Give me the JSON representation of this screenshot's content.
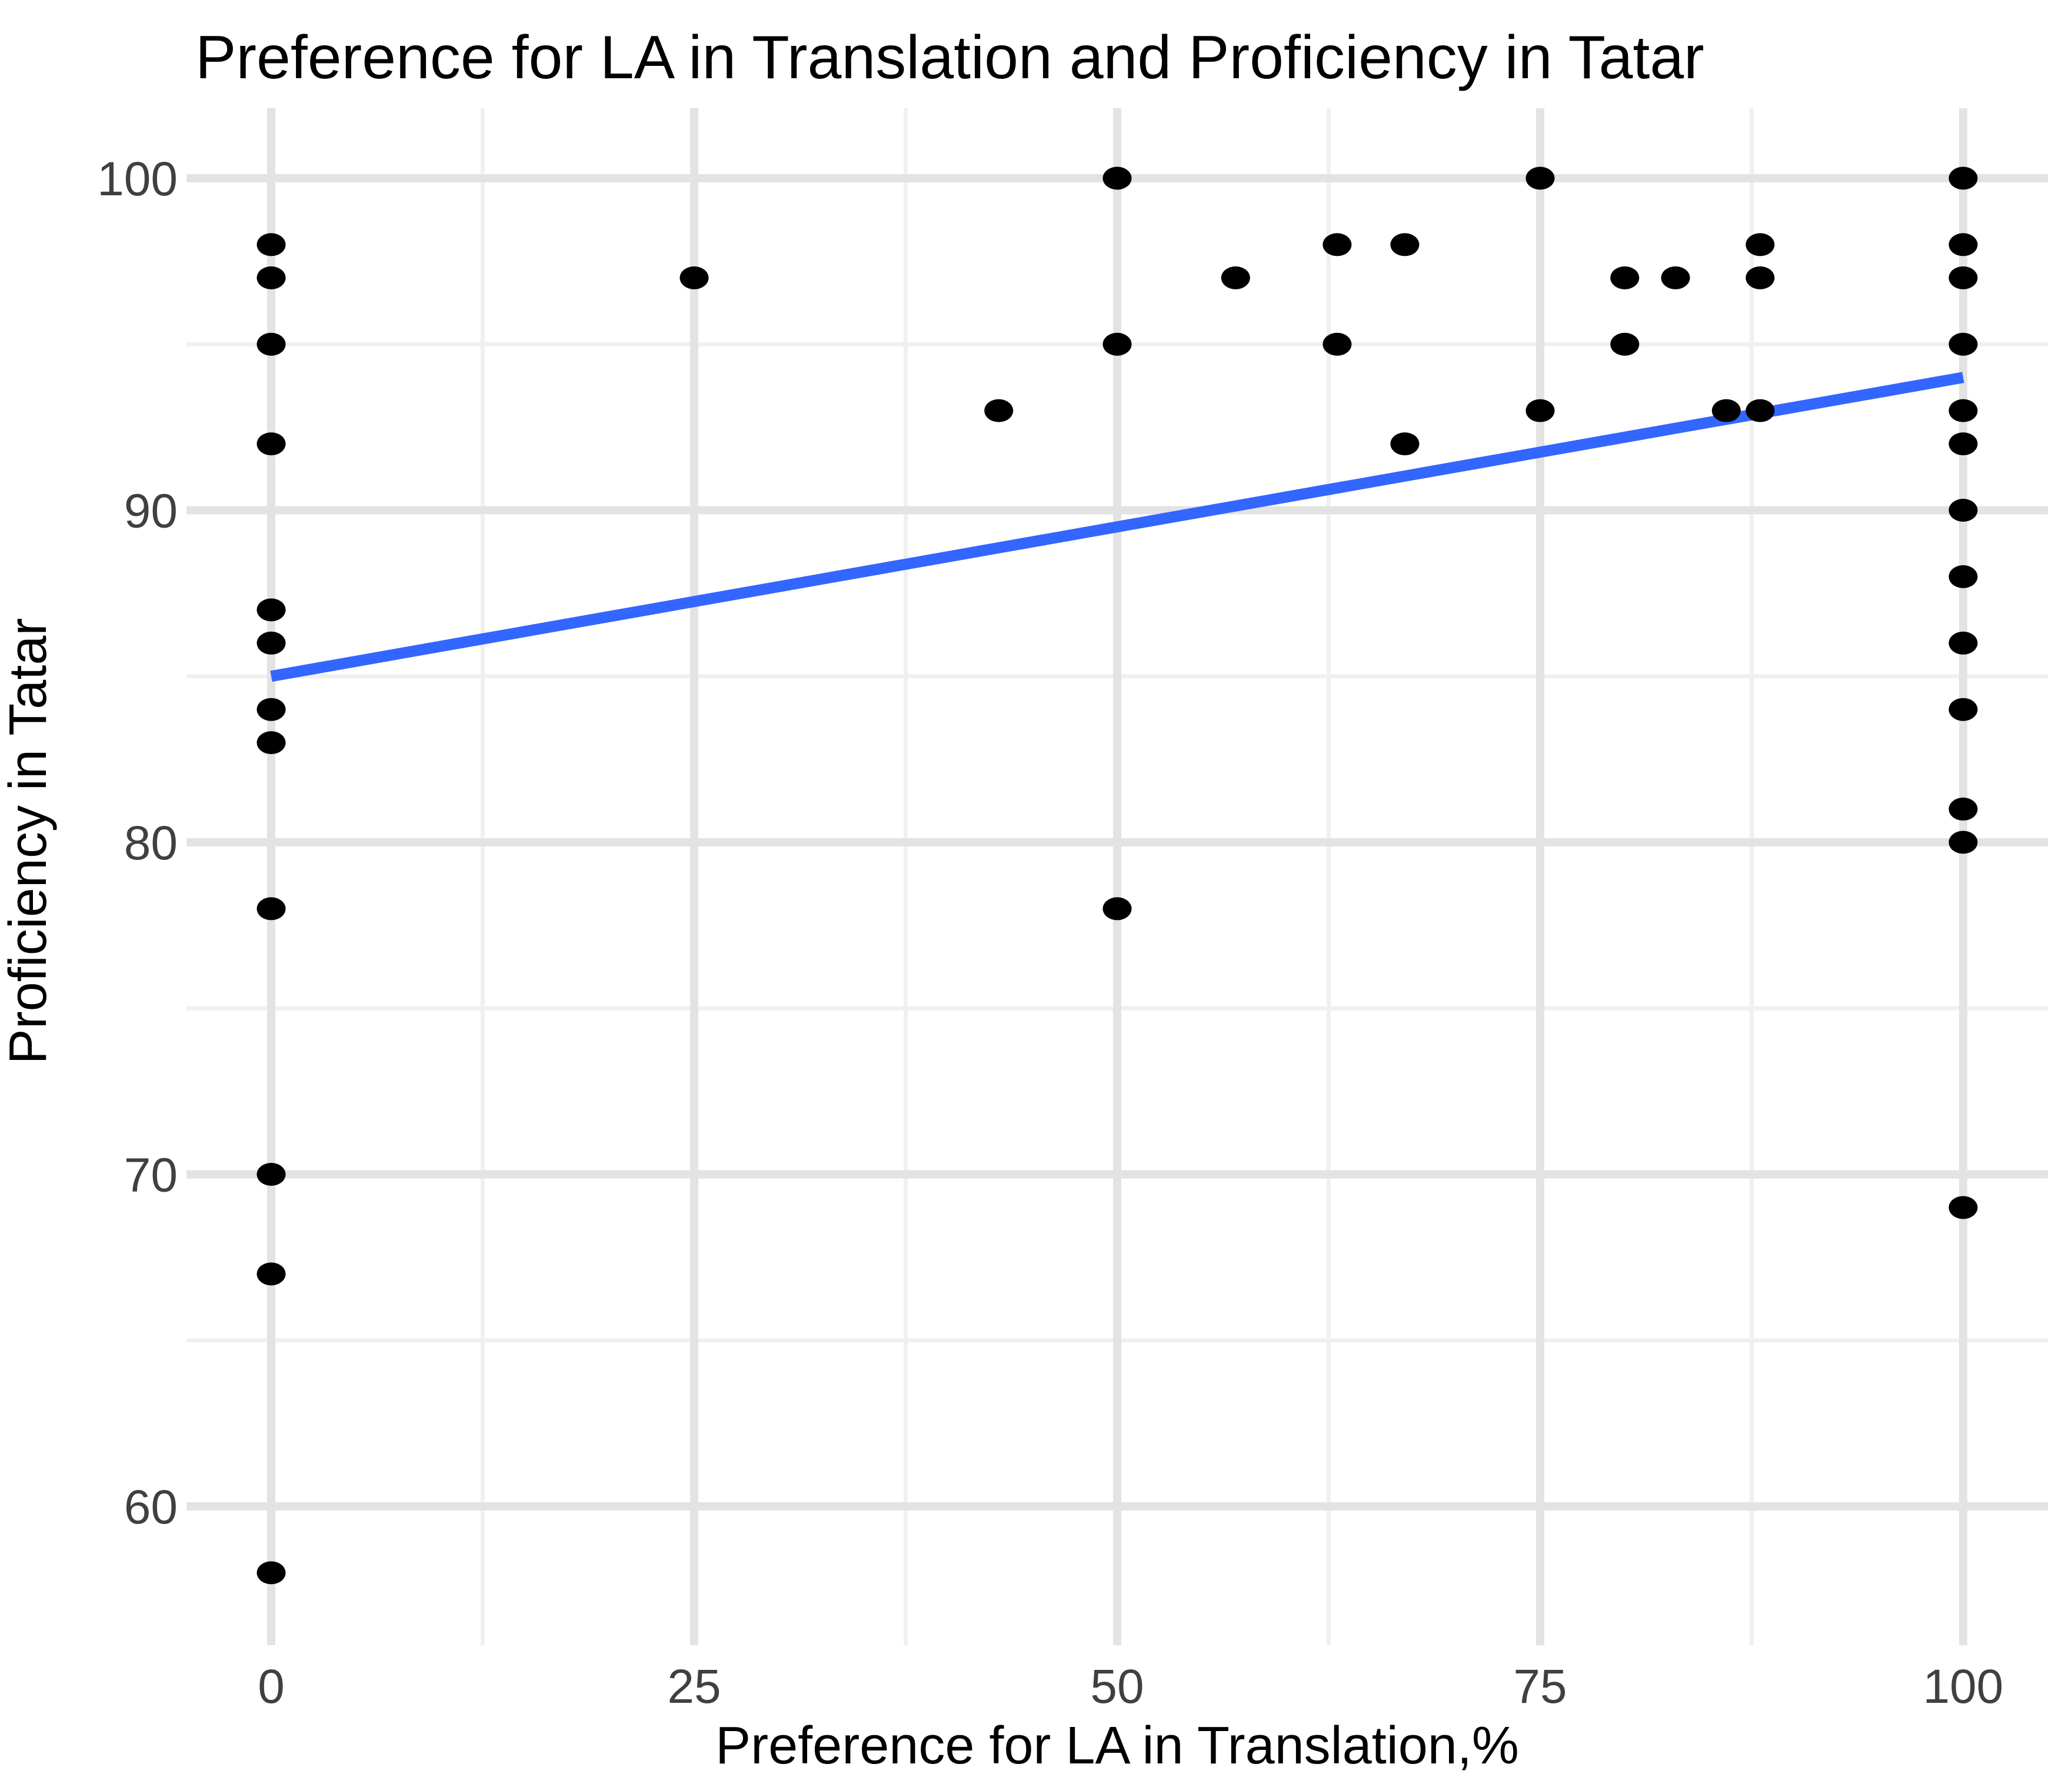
{
  "chart_data": {
    "type": "scatter",
    "title": "Preference for LA in Translation and Proficiency in Tatar",
    "xlabel": "Preference for LA in Translation,%",
    "ylabel": "Proficiency in Tatar",
    "x_ticks": [
      0,
      25,
      50,
      75,
      100
    ],
    "y_ticks": [
      60,
      70,
      80,
      90,
      100
    ],
    "x_minor_ticks": [
      12.5,
      37.5,
      62.5,
      87.5
    ],
    "y_minor_ticks": [
      65,
      75,
      85,
      95
    ],
    "xlim": [
      -5,
      105
    ],
    "ylim": [
      55.9,
      102.1
    ],
    "grid": true,
    "legend_position": "none",
    "points": [
      [
        0,
        98
      ],
      [
        0,
        97
      ],
      [
        0,
        95
      ],
      [
        0,
        92
      ],
      [
        0,
        87
      ],
      [
        0,
        86
      ],
      [
        0,
        84
      ],
      [
        0,
        83
      ],
      [
        0,
        78
      ],
      [
        0,
        70
      ],
      [
        0,
        67
      ],
      [
        0,
        58
      ],
      [
        25,
        97
      ],
      [
        43,
        93
      ],
      [
        50,
        100
      ],
      [
        50,
        95
      ],
      [
        50,
        78
      ],
      [
        57,
        97
      ],
      [
        63,
        98
      ],
      [
        63,
        95
      ],
      [
        67,
        98
      ],
      [
        67,
        92
      ],
      [
        75,
        100
      ],
      [
        75,
        93
      ],
      [
        80,
        97
      ],
      [
        80,
        95
      ],
      [
        83,
        97
      ],
      [
        86,
        93
      ],
      [
        88,
        98
      ],
      [
        88,
        97
      ],
      [
        88,
        93
      ],
      [
        100,
        100
      ],
      [
        100,
        98
      ],
      [
        100,
        97
      ],
      [
        100,
        95
      ],
      [
        100,
        93
      ],
      [
        100,
        92
      ],
      [
        100,
        90
      ],
      [
        100,
        88
      ],
      [
        100,
        86
      ],
      [
        100,
        84
      ],
      [
        100,
        81
      ],
      [
        100,
        80
      ],
      [
        100,
        69
      ]
    ],
    "trend_line": {
      "x1": 0,
      "y1": 85,
      "x2": 100,
      "y2": 94
    },
    "colors": {
      "point": "#000000",
      "trend": "#3366FF",
      "grid_major": "#E3E3E3",
      "grid_minor": "#F0F0F0",
      "tick_label": "#404040",
      "text": "#000000",
      "background": "#FFFFFF"
    }
  }
}
